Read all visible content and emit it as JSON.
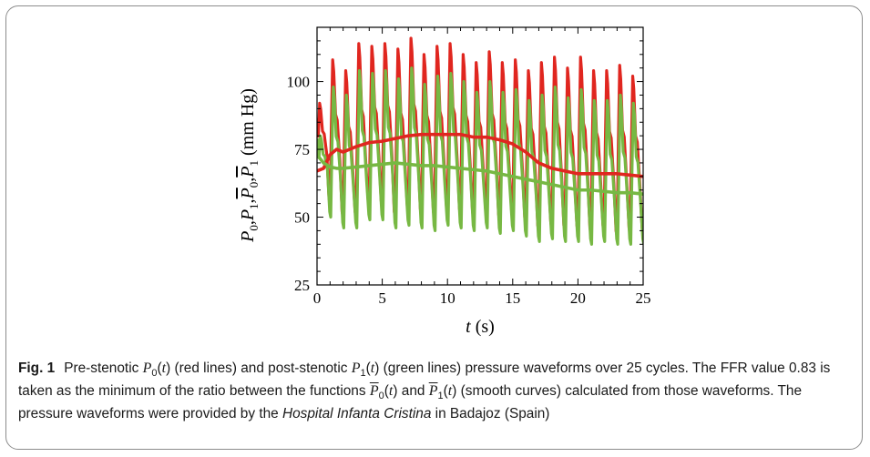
{
  "figure": {
    "label": "Fig. 1",
    "caption": {
      "t1": "Pre-stenotic ",
      "t2": " (red lines) and post-stenotic ",
      "t3": " (green lines) pressure waveforms over 25 cycles. The FFR value 0.83 is taken as the minimum of the ratio between the functions ",
      "t4": " and ",
      "t5": " (smooth curves) calculated from those waveforms. The pressure waveforms were provided by the ",
      "hospital": "Hospital Infanta Cristina",
      "t6": " in Badajoz (Spain)"
    }
  },
  "chart_data": {
    "type": "line",
    "xlabel": "t (s)",
    "ylabel": "P0,P1,P̄0,P̄1 (mm Hg)",
    "xlim": [
      0,
      25
    ],
    "ylim": [
      25,
      120
    ],
    "xticks": [
      0,
      5,
      10,
      15,
      20,
      25
    ],
    "yticks": [
      25,
      50,
      75,
      100
    ],
    "grid": false,
    "colors": {
      "red": "#e0261f",
      "green": "#77b843"
    },
    "series": [
      {
        "key": "P0_peaks",
        "color": "#e0261f",
        "cycle_start": [
          0.0,
          1.0,
          2.0,
          3.0,
          4.0,
          5.0,
          6.0,
          7.0,
          8.0,
          9.0,
          10.0,
          11.0,
          12.0,
          13.0,
          14.0,
          15.0,
          16.0,
          17.0,
          18.0,
          19.0,
          20.0,
          21.0,
          22.0,
          23.0,
          24.0
        ],
        "peak": [
          92,
          108,
          104,
          114,
          113,
          114,
          112,
          116,
          110,
          113,
          114,
          110,
          107,
          111,
          107,
          108,
          104,
          107,
          109,
          105,
          109,
          104,
          104,
          106,
          102
        ],
        "trough": [
          65,
          55,
          50,
          50,
          54,
          54,
          50,
          52,
          51,
          50,
          52,
          51,
          50,
          51,
          49,
          50,
          48,
          45,
          46,
          45,
          45,
          44,
          45,
          43,
          44
        ]
      },
      {
        "key": "P1_peaks",
        "color": "#77b843",
        "peak": [
          80,
          98,
          95,
          104,
          103,
          104,
          101,
          105,
          99,
          102,
          103,
          100,
          96,
          100,
          96,
          97,
          93,
          95,
          98,
          94,
          97,
          93,
          93,
          95,
          92
        ],
        "trough": [
          62,
          50,
          46,
          46,
          49,
          49,
          46,
          47,
          46,
          45,
          47,
          46,
          45,
          46,
          44,
          45,
          43,
          41,
          42,
          41,
          41,
          40,
          41,
          40,
          40
        ]
      },
      {
        "key": "P0_mean",
        "color": "#e0261f",
        "x": [
          0,
          0.5,
          1,
          1.5,
          2,
          3,
          4,
          5,
          6,
          7,
          8,
          9,
          10,
          11,
          12,
          13,
          14,
          15,
          16,
          17,
          18,
          19,
          20,
          21,
          22,
          23,
          24,
          25
        ],
        "y": [
          67,
          68,
          73,
          75,
          74,
          76,
          77.5,
          78,
          79,
          80,
          80.5,
          80.5,
          80.5,
          80.5,
          79.5,
          79.5,
          78.5,
          77,
          74,
          70,
          68,
          67,
          66,
          66,
          66,
          66,
          65.5,
          65
        ]
      },
      {
        "key": "P1_mean",
        "color": "#77b843",
        "x": [
          0,
          0.5,
          1,
          1.5,
          2,
          3,
          4,
          5,
          6,
          7,
          8,
          9,
          10,
          11,
          12,
          13,
          14,
          15,
          16,
          17,
          18,
          19,
          20,
          21,
          22,
          23,
          24,
          25
        ],
        "y": [
          73,
          70,
          68.5,
          68,
          68,
          68.5,
          69,
          69.5,
          70,
          69.5,
          69,
          69,
          68.5,
          68,
          67.5,
          67,
          66,
          65,
          64,
          63,
          62,
          61,
          60,
          60,
          59.5,
          59,
          59,
          58.5
        ]
      }
    ]
  }
}
